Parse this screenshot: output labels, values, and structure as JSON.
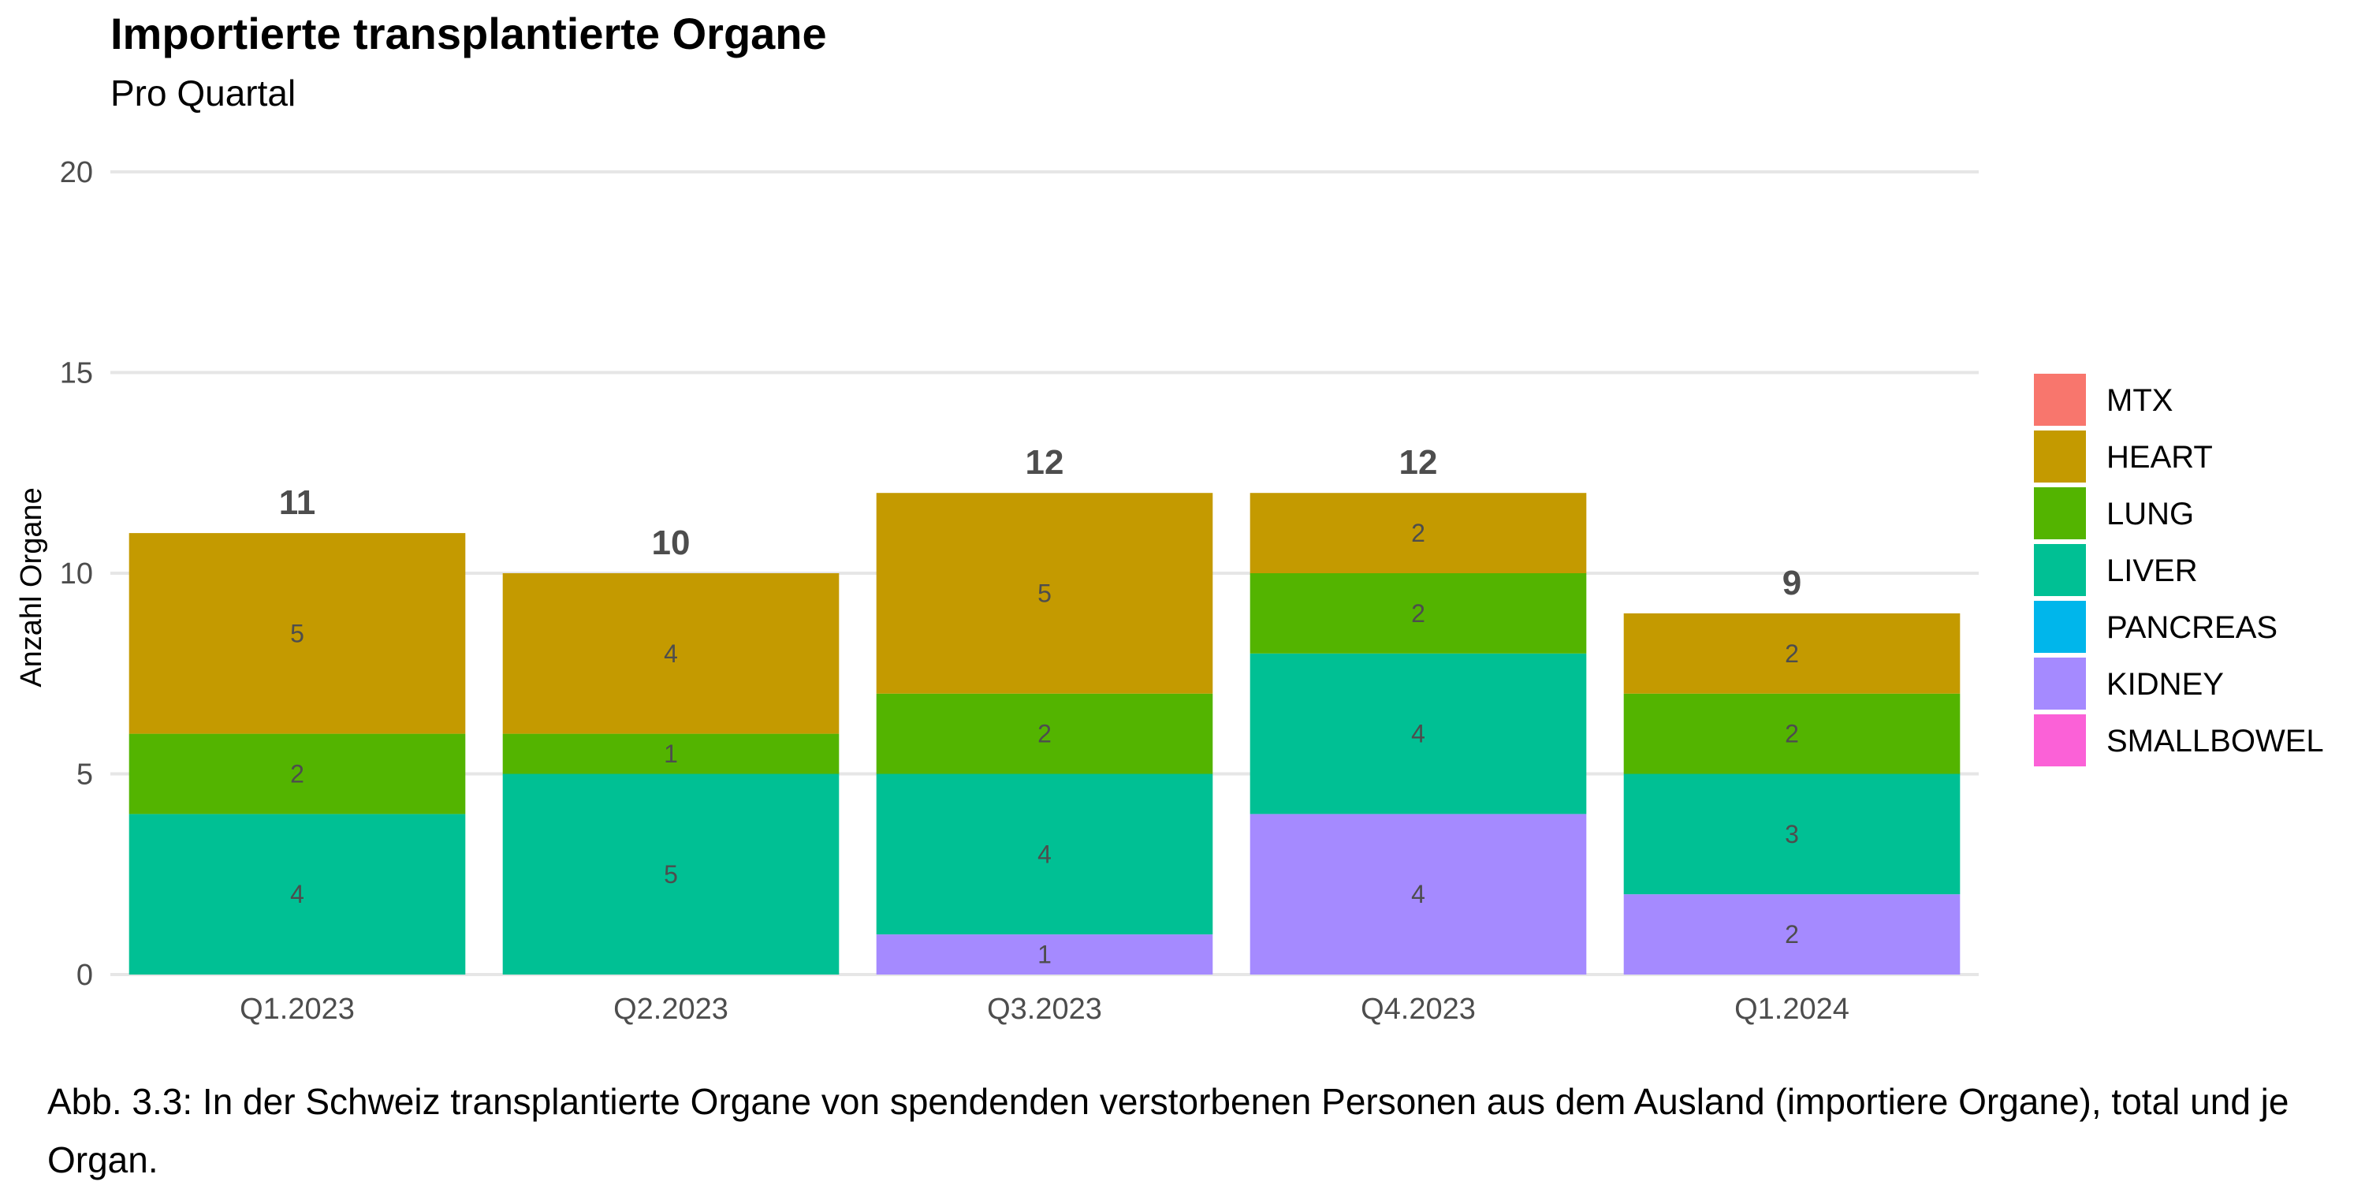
{
  "chart_data": {
    "type": "bar",
    "stacked": true,
    "title": "Importierte transplantierte Organe",
    "subtitle": "Pro Quartal",
    "xlabel": "",
    "ylabel": "Anzahl Organe",
    "ylim": [
      0,
      20
    ],
    "yticks": [
      "0",
      "5",
      "10",
      "15",
      "20"
    ],
    "grid": true,
    "legend_position": "right",
    "categories": [
      "Q1.2023",
      "Q2.2023",
      "Q3.2023",
      "Q4.2023",
      "Q1.2024"
    ],
    "totals": [
      "11",
      "10",
      "12",
      "12",
      "9"
    ],
    "series": [
      {
        "name": "MTX",
        "color": "#F8766D",
        "values": [
          0,
          0,
          0,
          0,
          0
        ]
      },
      {
        "name": "HEART",
        "color": "#C49A00",
        "values": [
          5,
          4,
          5,
          2,
          2
        ]
      },
      {
        "name": "LUNG",
        "color": "#53B400",
        "values": [
          2,
          1,
          2,
          2,
          2
        ]
      },
      {
        "name": "LIVER",
        "color": "#00C094",
        "values": [
          4,
          5,
          4,
          4,
          3
        ]
      },
      {
        "name": "PANCREAS",
        "color": "#00B6EB",
        "values": [
          0,
          0,
          0,
          0,
          0
        ]
      },
      {
        "name": "KIDNEY",
        "color": "#A58AFF",
        "values": [
          0,
          0,
          1,
          4,
          2
        ]
      },
      {
        "name": "SMALLBOWEL",
        "color": "#FB61D7",
        "values": [
          0,
          0,
          0,
          0,
          0
        ]
      }
    ]
  },
  "caption": "Abb. 3.3: In der Schweiz transplantierte Organe von spendenden verstorbenen Personen aus dem Ausland (importiere Organe), total und je Organ."
}
